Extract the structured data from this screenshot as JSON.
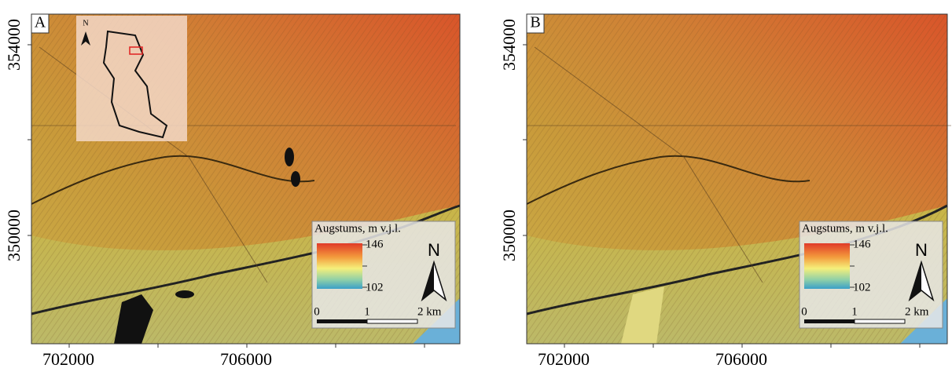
{
  "panels": [
    {
      "label": "A",
      "x_ticks": [
        "702000",
        "706000"
      ],
      "y_ticks": [
        "354000",
        "350000"
      ],
      "legend": {
        "title": "Augstums, m v.j.l.",
        "max": "146",
        "min": "102",
        "north": "N"
      },
      "scale_bar": [
        "0",
        "1",
        "2 km"
      ],
      "inset": {
        "north": "N"
      }
    },
    {
      "label": "B",
      "x_ticks": [
        "702000",
        "706000"
      ],
      "y_ticks": [
        "354000",
        "350000"
      ],
      "legend": {
        "title": "Augstums, m v.j.l.",
        "max": "146",
        "min": "102",
        "north": "N"
      },
      "scale_bar": [
        "0",
        "1",
        "2 km"
      ]
    }
  ]
}
